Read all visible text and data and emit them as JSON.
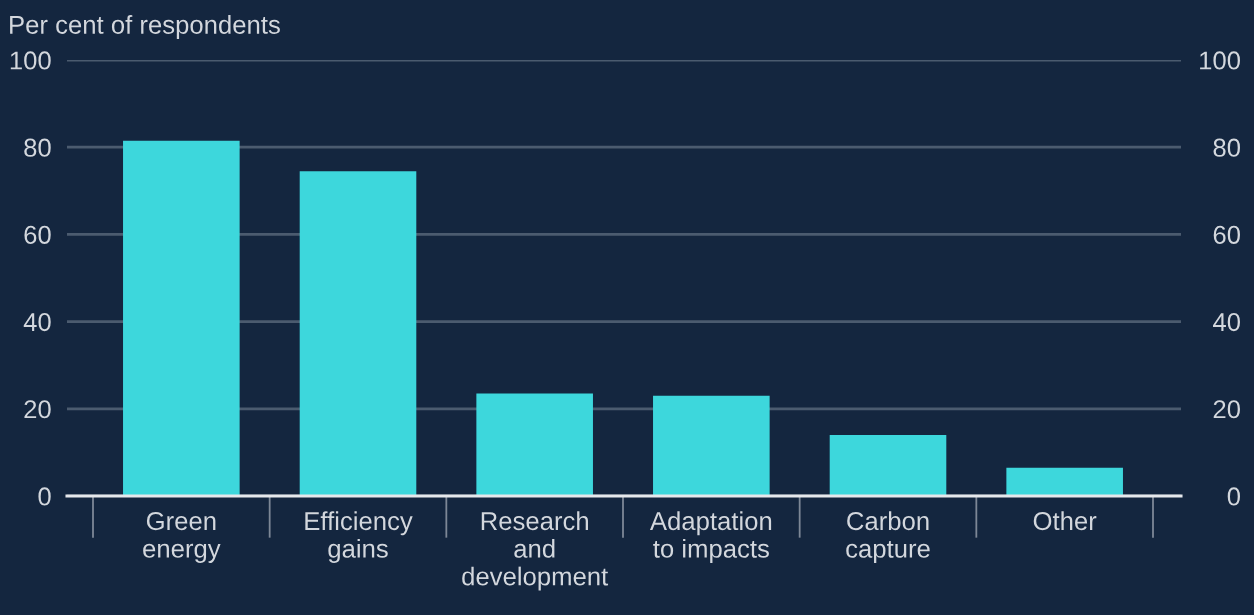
{
  "chart_data": {
    "type": "bar",
    "ylabel": "Per cent of respondents",
    "categories": [
      "Green\nenergy",
      "Efficiency\ngains",
      "Research\nand\ndevelopment",
      "Adaptation\nto impacts",
      "Carbon\ncapture",
      "Other"
    ],
    "values": [
      81.5,
      74.5,
      23.5,
      23,
      14,
      6.5
    ],
    "color": "#3dd7dc",
    "ylim": [
      0,
      100
    ],
    "yticks": [
      0,
      20,
      40,
      60,
      80,
      100
    ],
    "y2lim": [
      0,
      100
    ],
    "y2ticks": [
      0,
      20,
      40,
      60,
      80,
      100
    ],
    "grid": "y"
  }
}
